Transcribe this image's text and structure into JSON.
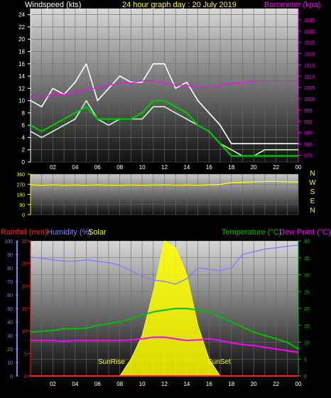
{
  "header": {
    "left_label": "Windspeed (kts)",
    "title": "24 hour graph day : 20 July 2019",
    "right_label": "Barometer (kpa)"
  },
  "bottom_header": {
    "rainfall_label": "Rainfall (mm)",
    "humidity_label": "Humidity (%)",
    "solar_label": "Solar",
    "temperature_label": "Temperature (°C)",
    "dewpoint_label": "Dew Point (°C)"
  },
  "annotations": {
    "sunrise": "SunRise",
    "sunset": "SunSet"
  },
  "colors": {
    "wind_gust": "#ffffff",
    "wind_avg": "#c8ffc8",
    "wind_trend": "#00c800",
    "barometer": "#ff00ff",
    "direction": "#ffff00",
    "humidity": "#8080ff",
    "temperature": "#00c000",
    "dewpoint": "#ff00ff",
    "solar": "#ffff00",
    "rainfall": "#ff2020"
  },
  "chart_data": [
    {
      "type": "line",
      "x_tick_labels": [
        "02",
        "04",
        "06",
        "08",
        "10",
        "12",
        "14",
        "16",
        "18",
        "20",
        "22",
        "00"
      ],
      "ylim": [
        0,
        25
      ],
      "y_ticks": [
        0,
        2,
        4,
        6,
        8,
        10,
        12,
        14,
        16,
        18,
        20,
        22,
        24
      ],
      "y2lim": [
        972,
        1040
      ],
      "y2_ticks": [
        975,
        980,
        985,
        990,
        995,
        1000,
        1005,
        1010,
        1015,
        1020,
        1025,
        1030,
        1035
      ],
      "x_hours": [
        0,
        1,
        2,
        3,
        4,
        5,
        6,
        7,
        8,
        9,
        10,
        11,
        12,
        13,
        14,
        15,
        16,
        17,
        18,
        19,
        20,
        21,
        22,
        23,
        24
      ],
      "series": [
        {
          "values": [
            10,
            9,
            12,
            11,
            13,
            16,
            10,
            12,
            14,
            13,
            13,
            16,
            16,
            12,
            13,
            10,
            8,
            6,
            3,
            3,
            3,
            3,
            3,
            3,
            3
          ]
        },
        {
          "values": [
            5,
            4,
            5,
            6,
            7,
            10,
            7,
            6,
            7,
            7,
            7,
            9,
            9,
            8,
            7,
            6,
            5,
            3,
            2,
            1,
            1,
            2,
            2,
            2,
            2
          ]
        },
        {
          "values": [
            6,
            5,
            6,
            7,
            8,
            9,
            7,
            7,
            7,
            7,
            8,
            10,
            10,
            9,
            8,
            6,
            5,
            3,
            1,
            1,
            1,
            1,
            1,
            1,
            1
          ]
        },
        {
          "values": [
            1001,
            1001,
            1002,
            1002,
            1003,
            1004,
            1005,
            1006,
            1007,
            1007,
            1008,
            1008,
            1007,
            1006,
            1006,
            1005,
            1005,
            1006,
            1007,
            1007,
            1008,
            1008,
            1008,
            1008,
            1008
          ]
        }
      ]
    },
    {
      "type": "line",
      "ylim": [
        0,
        360
      ],
      "y_ticks": [
        0,
        90,
        180,
        270,
        360
      ],
      "direction_labels": [
        "N",
        "W",
        "S",
        "E",
        "N"
      ],
      "x_hours": [
        0,
        1,
        2,
        3,
        4,
        5,
        6,
        7,
        8,
        9,
        10,
        11,
        12,
        13,
        14,
        15,
        16,
        17,
        18,
        19,
        20,
        21,
        22,
        23,
        24
      ],
      "series": [
        {
          "values": [
            265,
            262,
            266,
            262,
            264,
            262,
            265,
            263,
            262,
            264,
            262,
            264,
            266,
            263,
            264,
            262,
            265,
            268,
            285,
            288,
            292,
            295,
            295,
            292,
            290
          ]
        }
      ]
    },
    {
      "type": "line",
      "left_axis_humidity": [
        0,
        10,
        20,
        30,
        40,
        50,
        60,
        70,
        80,
        90,
        100
      ],
      "left_axis_rainfall": [
        0,
        5,
        10,
        15,
        20,
        25,
        30
      ],
      "right_axis": [
        0,
        5,
        10,
        15,
        20,
        25,
        30,
        35,
        40
      ],
      "ylim_humidity": [
        0,
        100
      ],
      "ylim_rainfall": [
        0,
        30
      ],
      "ylim_temp": [
        0,
        40
      ],
      "x_hours": [
        0,
        1,
        2,
        3,
        4,
        5,
        6,
        7,
        8,
        9,
        10,
        11,
        12,
        13,
        14,
        15,
        16,
        17,
        18,
        19,
        20,
        21,
        22,
        23,
        24
      ],
      "series": [
        {
          "values": [
            88,
            87,
            86,
            85,
            85,
            86,
            85,
            84,
            82,
            78,
            74,
            71,
            70,
            68,
            72,
            80,
            79,
            78,
            80,
            90,
            92,
            94,
            95,
            96,
            97
          ]
        },
        {
          "values": [
            13,
            13.2,
            13.5,
            14,
            14,
            14.2,
            15,
            15.5,
            16,
            17,
            18,
            19,
            19.5,
            20,
            20,
            19.5,
            19,
            17.5,
            16,
            14.5,
            13,
            12,
            11,
            10,
            8
          ]
        },
        {
          "values": [
            10.5,
            10.5,
            10.5,
            10.3,
            10.5,
            10.5,
            10.5,
            10.5,
            10.5,
            10.7,
            11,
            11.5,
            11.5,
            11,
            10.5,
            10.7,
            11,
            10.5,
            9.8,
            9.3,
            9,
            8.5,
            8,
            7.5,
            7
          ]
        },
        {
          "values": [
            0,
            0,
            0,
            0,
            0,
            0,
            0,
            0,
            0,
            5,
            12,
            25,
            40,
            38,
            30,
            15,
            5,
            0,
            0,
            0,
            0,
            0,
            0,
            0,
            0
          ]
        },
        {
          "values": [
            0,
            0,
            0,
            0,
            0,
            0,
            0,
            0,
            0,
            0,
            0,
            0,
            0,
            0,
            0,
            0,
            0,
            0,
            0,
            0,
            0,
            0,
            0,
            0,
            0
          ]
        }
      ]
    }
  ]
}
